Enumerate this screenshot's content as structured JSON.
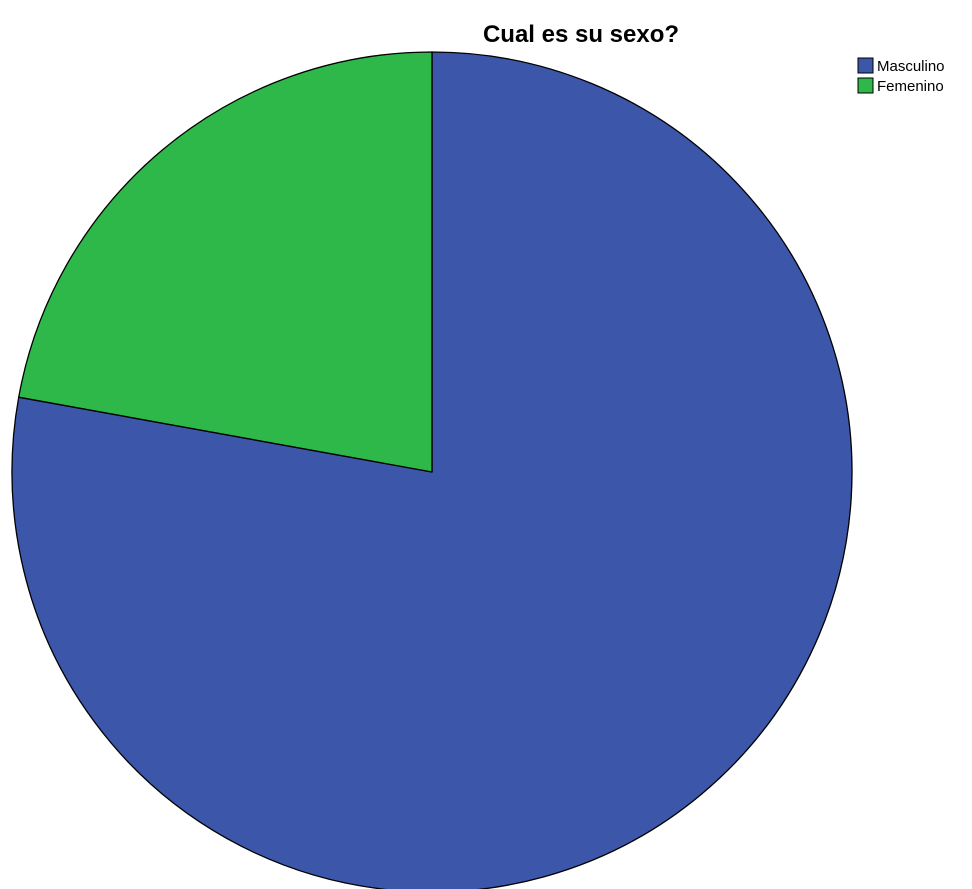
{
  "chart_data": {
    "type": "pie",
    "title": "Cual es su sexo?",
    "start": "12 o'clock",
    "direction": "clockwise",
    "slices": [
      {
        "label": "Masculino",
        "value": 0.7785,
        "color": "#3c57a9"
      },
      {
        "label": "Femenino",
        "value": 0.2215,
        "color": "#2eb84a"
      }
    ],
    "legend": {
      "position": "top-right"
    },
    "border_color": "#000000"
  }
}
